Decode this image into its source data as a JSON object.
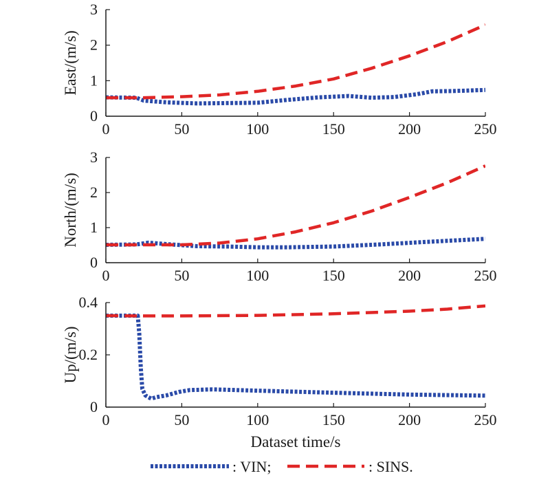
{
  "legend": {
    "vin_label": ": VIN;",
    "sins_label": ": SINS."
  },
  "colors": {
    "vin": "#2a4aa8",
    "sins": "#e02626",
    "axis": "#1a1a1a"
  },
  "chart_data": [
    {
      "type": "line",
      "ylabel": "East/(m/s)",
      "xlabel": "",
      "xlim": [
        0,
        250
      ],
      "ylim": [
        0,
        3
      ],
      "xticks": [
        0,
        50,
        100,
        150,
        200,
        250
      ],
      "yticks": [
        0,
        1,
        2,
        3
      ],
      "grid": false,
      "series": [
        {
          "name": "VIN",
          "x": [
            0,
            20,
            25,
            40,
            60,
            80,
            100,
            120,
            140,
            160,
            175,
            190,
            205,
            215,
            230,
            250
          ],
          "y": [
            0.53,
            0.52,
            0.44,
            0.39,
            0.36,
            0.37,
            0.38,
            0.46,
            0.53,
            0.57,
            0.52,
            0.54,
            0.62,
            0.7,
            0.71,
            0.74
          ]
        },
        {
          "name": "SINS",
          "x": [
            0,
            25,
            50,
            75,
            100,
            125,
            150,
            175,
            200,
            225,
            250
          ],
          "y": [
            0.52,
            0.52,
            0.55,
            0.6,
            0.7,
            0.85,
            1.05,
            1.35,
            1.7,
            2.1,
            2.57
          ]
        }
      ]
    },
    {
      "type": "line",
      "ylabel": "North/(m/s)",
      "xlabel": "",
      "xlim": [
        0,
        250
      ],
      "ylim": [
        0,
        3
      ],
      "xticks": [
        0,
        50,
        100,
        150,
        200,
        250
      ],
      "yticks": [
        0,
        1,
        2,
        3
      ],
      "grid": false,
      "series": [
        {
          "name": "VIN",
          "x": [
            0,
            20,
            28,
            40,
            60,
            80,
            100,
            120,
            150,
            180,
            210,
            250
          ],
          "y": [
            0.51,
            0.52,
            0.57,
            0.53,
            0.47,
            0.46,
            0.44,
            0.44,
            0.46,
            0.52,
            0.59,
            0.68
          ]
        },
        {
          "name": "SINS",
          "x": [
            0,
            25,
            50,
            75,
            100,
            125,
            150,
            175,
            200,
            225,
            250
          ],
          "y": [
            0.51,
            0.51,
            0.51,
            0.56,
            0.68,
            0.88,
            1.14,
            1.47,
            1.86,
            2.28,
            2.76
          ]
        }
      ]
    },
    {
      "type": "line",
      "ylabel": "Up/(m/s)",
      "xlabel": "Dataset time/s",
      "xlim": [
        0,
        250
      ],
      "ylim": [
        0,
        0.4
      ],
      "xticks": [
        0,
        50,
        100,
        150,
        200,
        250
      ],
      "yticks": [
        0,
        0.2,
        0.4
      ],
      "grid": false,
      "series": [
        {
          "name": "VIN",
          "x": [
            0,
            21,
            22,
            23,
            24,
            26,
            28,
            30,
            33,
            40,
            48,
            55,
            70,
            100,
            150,
            200,
            250
          ],
          "y": [
            0.35,
            0.35,
            0.28,
            0.15,
            0.07,
            0.045,
            0.038,
            0.032,
            0.038,
            0.045,
            0.058,
            0.065,
            0.068,
            0.063,
            0.055,
            0.048,
            0.044
          ]
        },
        {
          "name": "SINS",
          "x": [
            0,
            25,
            50,
            100,
            150,
            200,
            225,
            250
          ],
          "y": [
            0.35,
            0.349,
            0.349,
            0.351,
            0.357,
            0.367,
            0.375,
            0.387
          ]
        }
      ]
    }
  ]
}
